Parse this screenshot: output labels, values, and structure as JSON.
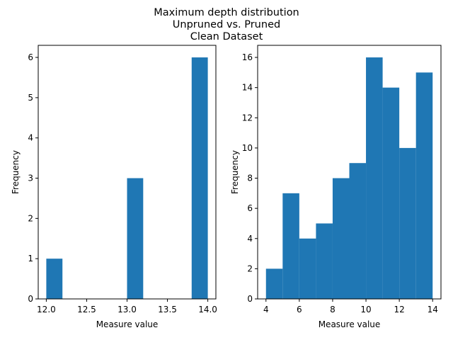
{
  "figure": {
    "title_lines": [
      "Maximum depth distribution",
      "Unpruned vs. Pruned",
      "Clean Dataset"
    ]
  },
  "chart_data": [
    {
      "type": "histogram",
      "xlabel": "Measure value",
      "ylabel": "Frequency",
      "bin_edges": [
        12.0,
        12.2,
        12.4,
        12.6,
        12.8,
        13.0,
        13.2,
        13.4,
        13.6,
        13.8,
        14.0
      ],
      "counts": [
        1,
        0,
        0,
        0,
        0,
        3,
        0,
        0,
        0,
        6
      ],
      "xlim": [
        11.9,
        14.1
      ],
      "ylim": [
        0,
        6.3
      ],
      "xticks": [
        12.0,
        12.5,
        13.0,
        13.5,
        14.0
      ],
      "xtick_labels": [
        "12.0",
        "12.5",
        "13.0",
        "13.5",
        "14.0"
      ],
      "yticks": [
        0,
        1,
        2,
        3,
        4,
        5,
        6
      ],
      "ytick_labels": [
        "0",
        "1",
        "2",
        "3",
        "4",
        "5",
        "6"
      ],
      "color": "#1f77b4",
      "grid": false
    },
    {
      "type": "histogram",
      "xlabel": "Measure value",
      "ylabel": "Frequency",
      "bin_edges": [
        4,
        5,
        6,
        7,
        8,
        9,
        10,
        11,
        12,
        13,
        14
      ],
      "counts": [
        2,
        7,
        4,
        5,
        8,
        9,
        16,
        14,
        10,
        15
      ],
      "xlim": [
        3.5,
        14.5
      ],
      "ylim": [
        0,
        16.8
      ],
      "xticks": [
        4,
        6,
        8,
        10,
        12,
        14
      ],
      "xtick_labels": [
        "4",
        "6",
        "8",
        "10",
        "12",
        "14"
      ],
      "yticks": [
        0,
        2,
        4,
        6,
        8,
        10,
        12,
        14,
        16
      ],
      "ytick_labels": [
        "0",
        "2",
        "4",
        "6",
        "8",
        "10",
        "12",
        "14",
        "16"
      ],
      "color": "#1f77b4",
      "grid": false
    }
  ]
}
